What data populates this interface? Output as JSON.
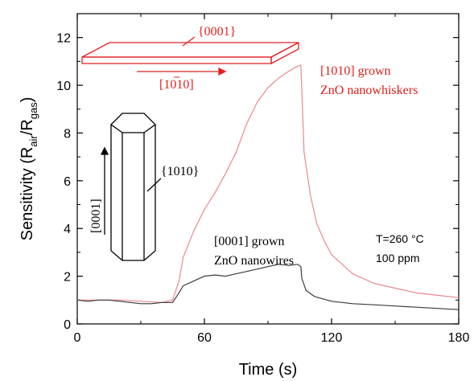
{
  "chart_data": {
    "type": "line",
    "xlabel": "Time (s)",
    "ylabel": "Sensitivity (R",
    "ylabel_sub1": "air",
    "ylabel_sep": "/R",
    "ylabel_sub2": "gas",
    "ylabel_close": ")",
    "xlim": [
      0,
      180
    ],
    "ylim": [
      0,
      13
    ],
    "x_ticks": [
      0,
      60,
      120,
      180
    ],
    "y_ticks": [
      0,
      2,
      4,
      6,
      8,
      10,
      12
    ],
    "grid": false,
    "series": [
      {
        "name": "[1010] grown ZnO nanowhiskers",
        "color": "#e8898f",
        "x": [
          0,
          10,
          20,
          30,
          40,
          45,
          48,
          50,
          55,
          60,
          65,
          70,
          75,
          80,
          85,
          90,
          95,
          100,
          104,
          105.5,
          106,
          107,
          110,
          113,
          117,
          120,
          125,
          130,
          140,
          150,
          160,
          170,
          180
        ],
        "y": [
          1.0,
          1.0,
          1.0,
          0.95,
          0.9,
          1.0,
          1.8,
          2.8,
          3.9,
          4.8,
          5.5,
          6.3,
          7.2,
          8.4,
          9.3,
          9.9,
          10.3,
          10.6,
          10.8,
          10.85,
          9.8,
          7.2,
          5.4,
          4.2,
          3.4,
          2.9,
          2.5,
          2.1,
          1.7,
          1.5,
          1.3,
          1.2,
          1.1
        ]
      },
      {
        "name": "[0001] grown ZnO nanowires",
        "color": "#3a3a3a",
        "x": [
          0,
          5,
          10,
          15,
          20,
          25,
          30,
          35,
          40,
          45,
          48,
          50,
          55,
          60,
          65,
          70,
          75,
          80,
          85,
          90,
          95,
          100,
          104,
          105.5,
          106,
          108,
          112,
          120,
          130,
          140,
          150,
          160,
          170,
          180
        ],
        "y": [
          1.0,
          0.95,
          1.0,
          1.0,
          0.95,
          0.9,
          0.85,
          0.85,
          0.9,
          0.9,
          1.3,
          1.6,
          1.8,
          2.0,
          2.05,
          2.0,
          2.1,
          2.2,
          2.3,
          2.4,
          2.5,
          2.45,
          2.5,
          2.4,
          1.9,
          1.4,
          1.15,
          0.95,
          0.85,
          0.8,
          0.75,
          0.7,
          0.65,
          0.6
        ]
      }
    ]
  },
  "annotations": {
    "whisker_label_line1": "[1010] grown",
    "whisker_label_line2": "ZnO nanowhiskers",
    "wire_label_line1": "[0001] grown",
    "wire_label_line2": "ZnO nanowires",
    "condition_line1": "T=260 °C",
    "condition_line2": "100 ppm",
    "plate_top_face": "{0001}",
    "plate_direction": "[1010]",
    "prism_side_face": "{1010}",
    "prism_direction": "[0001]",
    "plate_color": "#e02020",
    "prism_color": "#000000"
  }
}
